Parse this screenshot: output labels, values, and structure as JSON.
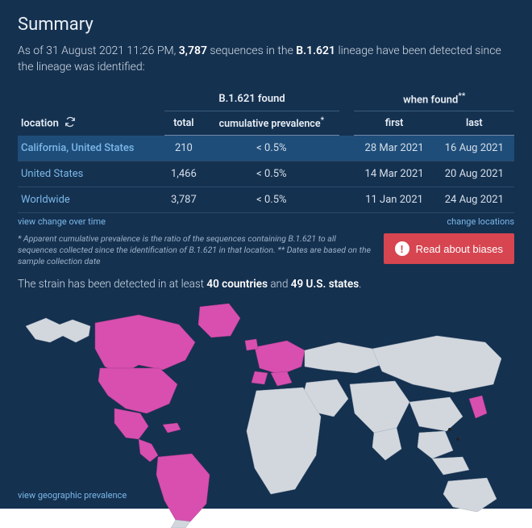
{
  "title": "Summary",
  "intro": {
    "prefix": "As of ",
    "timestamp": "31 August 2021 11:26 PM",
    "mid1": ", ",
    "count": "3,787",
    "mid2": " sequences in the ",
    "lineage": "B.1.621",
    "suffix": " lineage have been detected since the lineage was identified:"
  },
  "table": {
    "headers": {
      "location": "location",
      "group_found": "B.1.621 found",
      "group_when": "when found",
      "total": "total",
      "prevalence": "cumulative prevalence",
      "first": "first",
      "last": "last"
    },
    "rows": [
      {
        "location": "California, United States",
        "total": "210",
        "prevalence": "< 0.5%",
        "first": "28 Mar 2021",
        "last": "16 Aug 2021",
        "highlight": true
      },
      {
        "location": "United States",
        "total": "1,466",
        "prevalence": "< 0.5%",
        "first": "14 Mar 2021",
        "last": "20 Aug 2021",
        "highlight": false
      },
      {
        "location": "Worldwide",
        "total": "3,787",
        "prevalence": "< 0.5%",
        "first": "11 Jan 2021",
        "last": "24 Aug 2021",
        "highlight": false
      }
    ]
  },
  "links": {
    "view_change": "view change over time",
    "change_locations": "change locations",
    "geo_prevalence": "view geographic prevalence"
  },
  "footnote": "* Apparent cumulative prevalence is the ratio of the sequences containing B.1.621 to all sequences collected since the identification of B.1.621 in that location.   ** Dates are based on the sample collection date",
  "bias_button": "Read about biases",
  "detected": {
    "prefix": "The strain has been detected in at least ",
    "countries": "40 countries",
    "mid": " and ",
    "states": "49 U.S. states",
    "suffix": "."
  },
  "map": {
    "background": "#153150",
    "land_off_fill": "#d2d7dd",
    "land_off_stroke": "#a9b2bd",
    "land_on_fill": "#d84fb0",
    "land_on_stroke": "#a33a86"
  },
  "colors": {
    "panel_bg": "#153150",
    "text": "#d5dfe9",
    "link": "#7bb8e8",
    "highlight_row": "#1f4d7a",
    "button_bg": "#d64550"
  }
}
